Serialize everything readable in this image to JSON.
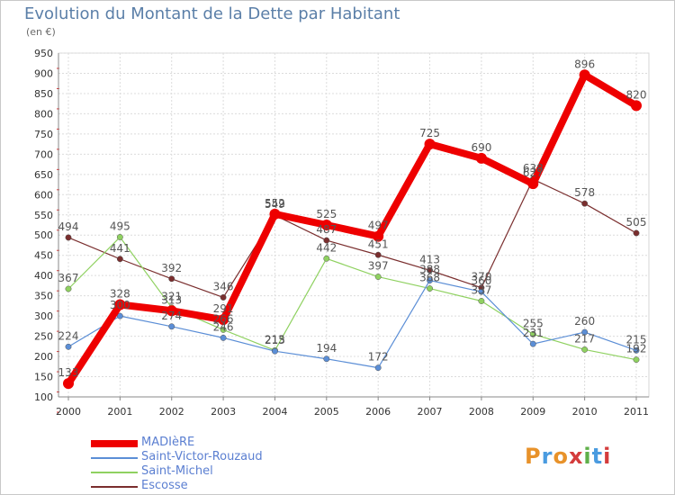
{
  "title": "Evolution du Montant de la Dette par Habitant",
  "unit": "(en €)",
  "logo": {
    "text": "Proxiti",
    "colors": [
      "#e8922a",
      "#4a9be0",
      "#e8922a",
      "#d43c3c",
      "#5fb04a",
      "#4a9be0",
      "#d43c3c"
    ]
  },
  "chart_data": {
    "type": "line",
    "x": [
      "2000",
      "2001",
      "2002",
      "2003",
      "2004",
      "2005",
      "2006",
      "2007",
      "2008",
      "2009",
      "2010",
      "2011"
    ],
    "ylim": [
      100,
      950
    ],
    "yticks": [
      "100",
      "150",
      "200",
      "250",
      "300",
      "350",
      "400",
      "450",
      "500",
      "550",
      "600",
      "650",
      "700",
      "750",
      "800",
      "850",
      "900",
      "950"
    ],
    "grid": true,
    "legend_position": "bottom-left",
    "series": [
      {
        "name": "MADIèRE",
        "color": "#ee0000",
        "values": [
          133,
          328,
          313,
          291,
          552,
          525,
          497,
          725,
          690,
          627,
          896,
          820
        ]
      },
      {
        "name": "Saint-Victor-Rouzaud",
        "color": "#5b8ed6",
        "values": [
          224,
          300,
          274,
          246,
          213,
          194,
          172,
          388,
          360,
          231,
          260,
          215
        ]
      },
      {
        "name": "Saint-Michel",
        "color": "#8fd160",
        "values": [
          367,
          495,
          321,
          266,
          215,
          442,
          397,
          368,
          337,
          255,
          217,
          192
        ]
      },
      {
        "name": "Escosse",
        "color": "#7a2e2e",
        "values": [
          494,
          441,
          392,
          346,
          549,
          487,
          451,
          413,
          370,
          638,
          578,
          505
        ]
      }
    ]
  }
}
